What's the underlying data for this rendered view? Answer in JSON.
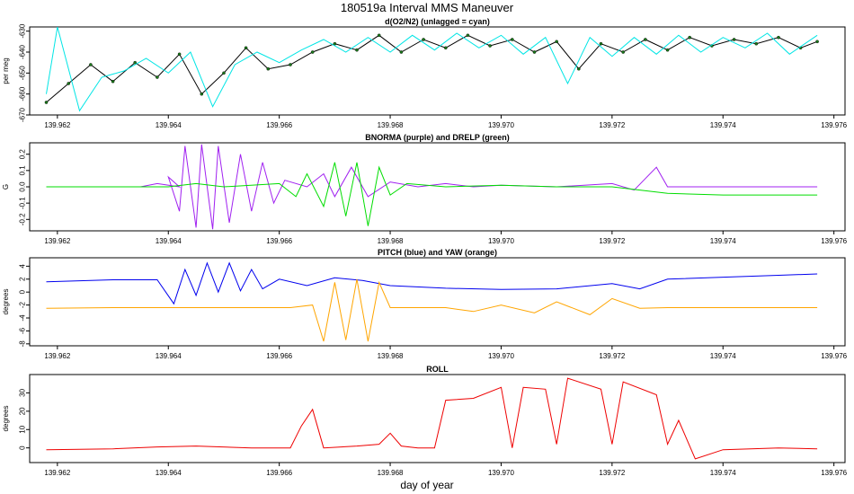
{
  "title": "180519a   Interval MMS Maneuver",
  "xlabel": "day of year",
  "x_ticks": [
    "139.962",
    "139.964",
    "139.966",
    "139.968",
    "139.970",
    "139.972",
    "139.974",
    "139.976"
  ],
  "chart_data": [
    {
      "type": "line",
      "title": "d(O2/N2) (unlagged = cyan)",
      "ylabel": "per meg",
      "xlim": [
        139.9615,
        139.9762
      ],
      "ylim": [
        -670,
        -628
      ],
      "y_ticks": [
        -670,
        -660,
        -650,
        -640,
        -630
      ],
      "colors": {
        "raw": "#000000",
        "points": "#1a7a1a",
        "unlagged": "#00e5e5"
      },
      "series": [
        {
          "key": "raw",
          "points": [
            [
              139.9618,
              -664
            ],
            [
              139.9622,
              -655
            ],
            [
              139.9626,
              -646
            ],
            [
              139.963,
              -654
            ],
            [
              139.9634,
              -645
            ],
            [
              139.9638,
              -652
            ],
            [
              139.9642,
              -641
            ],
            [
              139.9646,
              -660
            ],
            [
              139.965,
              -650
            ],
            [
              139.9654,
              -638
            ],
            [
              139.9658,
              -648
            ],
            [
              139.9662,
              -646
            ],
            [
              139.9666,
              -640
            ],
            [
              139.967,
              -636
            ],
            [
              139.9674,
              -639
            ],
            [
              139.9678,
              -632
            ],
            [
              139.9682,
              -640
            ],
            [
              139.9686,
              -634
            ],
            [
              139.969,
              -638
            ],
            [
              139.9694,
              -632
            ],
            [
              139.9698,
              -637
            ],
            [
              139.9702,
              -634
            ],
            [
              139.9706,
              -640
            ],
            [
              139.971,
              -635
            ],
            [
              139.9714,
              -648
            ],
            [
              139.9718,
              -636
            ],
            [
              139.9722,
              -640
            ],
            [
              139.9726,
              -634
            ],
            [
              139.973,
              -639
            ],
            [
              139.9734,
              -633
            ],
            [
              139.9738,
              -637
            ],
            [
              139.9742,
              -634
            ],
            [
              139.9746,
              -636
            ],
            [
              139.975,
              -633
            ],
            [
              139.9754,
              -638
            ],
            [
              139.9757,
              -635
            ]
          ]
        },
        {
          "key": "unlagged",
          "points": [
            [
              139.9618,
              -660
            ],
            [
              139.962,
              -628
            ],
            [
              139.9624,
              -668
            ],
            [
              139.9628,
              -652
            ],
            [
              139.9632,
              -649
            ],
            [
              139.9636,
              -643
            ],
            [
              139.964,
              -650
            ],
            [
              139.9644,
              -640
            ],
            [
              139.9648,
              -666
            ],
            [
              139.9652,
              -646
            ],
            [
              139.9656,
              -640
            ],
            [
              139.966,
              -645
            ],
            [
              139.9664,
              -639
            ],
            [
              139.9668,
              -634
            ],
            [
              139.9672,
              -640
            ],
            [
              139.9676,
              -633
            ],
            [
              139.968,
              -640
            ],
            [
              139.9684,
              -632
            ],
            [
              139.9688,
              -639
            ],
            [
              139.9692,
              -631
            ],
            [
              139.9696,
              -638
            ],
            [
              139.97,
              -632
            ],
            [
              139.9704,
              -641
            ],
            [
              139.9708,
              -633
            ],
            [
              139.9712,
              -655
            ],
            [
              139.9716,
              -633
            ],
            [
              139.972,
              -642
            ],
            [
              139.9724,
              -633
            ],
            [
              139.9728,
              -641
            ],
            [
              139.9732,
              -632
            ],
            [
              139.9736,
              -640
            ],
            [
              139.974,
              -633
            ],
            [
              139.9744,
              -638
            ],
            [
              139.9748,
              -631
            ],
            [
              139.9752,
              -641
            ],
            [
              139.9757,
              -632
            ]
          ]
        }
      ]
    },
    {
      "type": "line",
      "title": "BNORMA (purple) and DRELP (green)",
      "ylabel": "G",
      "xlim": [
        139.9615,
        139.9762
      ],
      "ylim": [
        -0.27,
        0.27
      ],
      "y_ticks": [
        -0.2,
        -0.1,
        0.0,
        0.1,
        0.2
      ],
      "colors": {
        "BNORMA": "#a020f0",
        "DRELP": "#00dd00"
      },
      "series": [
        {
          "key": "BNORMA",
          "points": [
            [
              139.9618,
              0.0
            ],
            [
              139.9625,
              0.0
            ],
            [
              139.9635,
              0.0
            ],
            [
              139.9638,
              0.02
            ],
            [
              139.9642,
              0.0
            ],
            [
              139.964,
              0.06
            ],
            [
              139.9642,
              -0.15
            ],
            [
              139.9643,
              0.25
            ],
            [
              139.9645,
              -0.25
            ],
            [
              139.9646,
              0.26
            ],
            [
              139.9648,
              -0.26
            ],
            [
              139.9649,
              0.25
            ],
            [
              139.9651,
              -0.22
            ],
            [
              139.9653,
              0.2
            ],
            [
              139.9655,
              -0.15
            ],
            [
              139.9657,
              0.15
            ],
            [
              139.9659,
              -0.1
            ],
            [
              139.9661,
              0.04
            ],
            [
              139.9665,
              0.0
            ],
            [
              139.9668,
              0.08
            ],
            [
              139.967,
              -0.06
            ],
            [
              139.9673,
              0.12
            ],
            [
              139.9676,
              -0.06
            ],
            [
              139.968,
              0.03
            ],
            [
              139.9685,
              0.0
            ],
            [
              139.969,
              0.02
            ],
            [
              139.9695,
              0.0
            ],
            [
              139.97,
              0.01
            ],
            [
              139.971,
              0.0
            ],
            [
              139.972,
              0.02
            ],
            [
              139.9724,
              -0.02
            ],
            [
              139.9728,
              0.12
            ],
            [
              139.973,
              0.0
            ],
            [
              139.974,
              0.0
            ],
            [
              139.975,
              0.0
            ],
            [
              139.9757,
              0.0
            ]
          ]
        },
        {
          "key": "DRELP",
          "points": [
            [
              139.9618,
              0.0
            ],
            [
              139.963,
              0.0
            ],
            [
              139.964,
              0.0
            ],
            [
              139.9645,
              0.02
            ],
            [
              139.965,
              0.0
            ],
            [
              139.966,
              0.02
            ],
            [
              139.9663,
              -0.06
            ],
            [
              139.9665,
              0.08
            ],
            [
              139.9668,
              -0.12
            ],
            [
              139.967,
              0.15
            ],
            [
              139.9672,
              -0.18
            ],
            [
              139.9674,
              0.15
            ],
            [
              139.9676,
              -0.24
            ],
            [
              139.9678,
              0.12
            ],
            [
              139.968,
              -0.05
            ],
            [
              139.9683,
              0.02
            ],
            [
              139.969,
              0.0
            ],
            [
              139.97,
              0.01
            ],
            [
              139.971,
              0.0
            ],
            [
              139.972,
              0.0
            ],
            [
              139.973,
              -0.04
            ],
            [
              139.974,
              -0.05
            ],
            [
              139.975,
              -0.05
            ],
            [
              139.9757,
              -0.05
            ]
          ]
        }
      ]
    },
    {
      "type": "line",
      "title": "PITCH (blue) and YAW (orange)",
      "ylabel": "degrees",
      "xlim": [
        139.9615,
        139.9762
      ],
      "ylim": [
        -8.3,
        5.3
      ],
      "y_ticks": [
        -8,
        -6,
        -4,
        -2,
        0,
        2,
        4
      ],
      "colors": {
        "PITCH": "#0000ee",
        "YAW": "#ffa500"
      },
      "series": [
        {
          "key": "PITCH",
          "points": [
            [
              139.9618,
              1.6
            ],
            [
              139.963,
              1.9
            ],
            [
              139.9638,
              1.9
            ],
            [
              139.9641,
              -1.8
            ],
            [
              139.9643,
              3.5
            ],
            [
              139.9645,
              -0.5
            ],
            [
              139.9647,
              4.5
            ],
            [
              139.9649,
              0.0
            ],
            [
              139.9651,
              4.5
            ],
            [
              139.9653,
              0.2
            ],
            [
              139.9655,
              3.5
            ],
            [
              139.9657,
              0.5
            ],
            [
              139.966,
              2.0
            ],
            [
              139.9665,
              1.0
            ],
            [
              139.967,
              2.2
            ],
            [
              139.9675,
              1.8
            ],
            [
              139.968,
              1.0
            ],
            [
              139.969,
              0.6
            ],
            [
              139.97,
              0.4
            ],
            [
              139.971,
              0.5
            ],
            [
              139.972,
              1.3
            ],
            [
              139.9725,
              0.5
            ],
            [
              139.973,
              2.0
            ],
            [
              139.974,
              2.3
            ],
            [
              139.975,
              2.6
            ],
            [
              139.9757,
              2.8
            ]
          ]
        },
        {
          "key": "YAW",
          "points": [
            [
              139.9618,
              -2.5
            ],
            [
              139.963,
              -2.4
            ],
            [
              139.964,
              -2.4
            ],
            [
              139.9662,
              -2.4
            ],
            [
              139.9666,
              -2.0
            ],
            [
              139.9668,
              -7.6
            ],
            [
              139.967,
              1.5
            ],
            [
              139.9672,
              -7.4
            ],
            [
              139.9674,
              2.0
            ],
            [
              139.9676,
              -7.6
            ],
            [
              139.9678,
              1.5
            ],
            [
              139.968,
              -2.4
            ],
            [
              139.969,
              -2.4
            ],
            [
              139.9695,
              -3.0
            ],
            [
              139.97,
              -2.0
            ],
            [
              139.9706,
              -3.2
            ],
            [
              139.971,
              -1.5
            ],
            [
              139.9716,
              -3.5
            ],
            [
              139.972,
              -1.0
            ],
            [
              139.9725,
              -2.5
            ],
            [
              139.973,
              -2.4
            ],
            [
              139.974,
              -2.4
            ],
            [
              139.9757,
              -2.4
            ]
          ]
        }
      ]
    },
    {
      "type": "line",
      "title": "ROLL",
      "ylabel": "degrees",
      "xlim": [
        139.9615,
        139.9762
      ],
      "ylim": [
        -8,
        40
      ],
      "y_ticks": [
        0,
        10,
        20,
        30
      ],
      "colors": {
        "ROLL": "#ee0000"
      },
      "series": [
        {
          "key": "ROLL",
          "points": [
            [
              139.9618,
              -1
            ],
            [
              139.963,
              -0.5
            ],
            [
              139.9638,
              0.5
            ],
            [
              139.9645,
              1
            ],
            [
              139.9655,
              0
            ],
            [
              139.9662,
              0
            ],
            [
              139.9664,
              12
            ],
            [
              139.9666,
              21
            ],
            [
              139.9668,
              0
            ],
            [
              139.9674,
              1
            ],
            [
              139.9678,
              2
            ],
            [
              139.968,
              8
            ],
            [
              139.9682,
              1
            ],
            [
              139.9685,
              0
            ],
            [
              139.9688,
              0
            ],
            [
              139.969,
              26
            ],
            [
              139.9695,
              27
            ],
            [
              139.97,
              33
            ],
            [
              139.9702,
              0
            ],
            [
              139.9704,
              33
            ],
            [
              139.9708,
              32
            ],
            [
              139.971,
              2
            ],
            [
              139.9712,
              38
            ],
            [
              139.9718,
              32
            ],
            [
              139.972,
              2
            ],
            [
              139.9722,
              36
            ],
            [
              139.9728,
              29
            ],
            [
              139.973,
              2
            ],
            [
              139.9732,
              15
            ],
            [
              139.9735,
              -6
            ],
            [
              139.974,
              -1
            ],
            [
              139.975,
              0
            ],
            [
              139.9757,
              -0.5
            ]
          ]
        }
      ]
    }
  ]
}
